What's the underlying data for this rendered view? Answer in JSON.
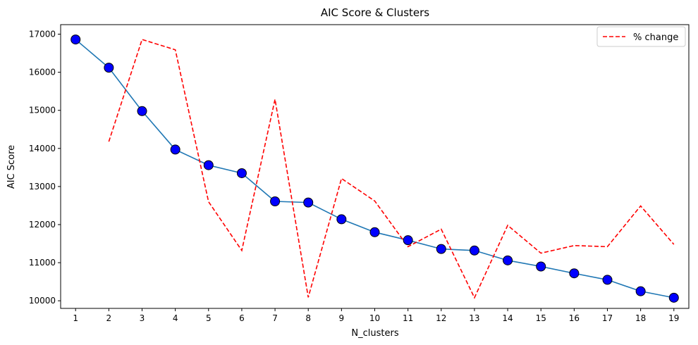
{
  "chart_data": {
    "type": "line",
    "title": "AIC Score & Clusters",
    "xlabel": "N_clusters",
    "ylabel": "AIC Score",
    "x": [
      1,
      2,
      3,
      4,
      5,
      6,
      7,
      8,
      9,
      10,
      11,
      12,
      13,
      14,
      15,
      16,
      17,
      18,
      19
    ],
    "ylim": [
      9800,
      17250
    ],
    "yticks": [
      10000,
      11000,
      12000,
      13000,
      14000,
      15000,
      16000,
      17000
    ],
    "grid": false,
    "legend": {
      "position": "top-right",
      "entries": [
        "% change"
      ]
    },
    "series": [
      {
        "style": "solid-with-markers",
        "color": "#1f77b4",
        "marker_color": "#0000ff",
        "values": [
          16860,
          16120,
          14980,
          13970,
          13560,
          13350,
          12610,
          12580,
          12140,
          11800,
          11590,
          11360,
          11320,
          11060,
          10900,
          10720,
          10550,
          10250,
          10080
        ]
      },
      {
        "name": "% change",
        "style": "dashed",
        "color": "#ff0000",
        "x": [
          2,
          3,
          4,
          5,
          6,
          7,
          8,
          9,
          10,
          11,
          12,
          13,
          14,
          15,
          16,
          17,
          18,
          19
        ],
        "values": [
          14180,
          16860,
          16590,
          12600,
          11320,
          15290,
          10090,
          13210,
          12620,
          11420,
          11880,
          10080,
          11980,
          11250,
          11450,
          11420,
          12490,
          11480
        ]
      }
    ]
  }
}
